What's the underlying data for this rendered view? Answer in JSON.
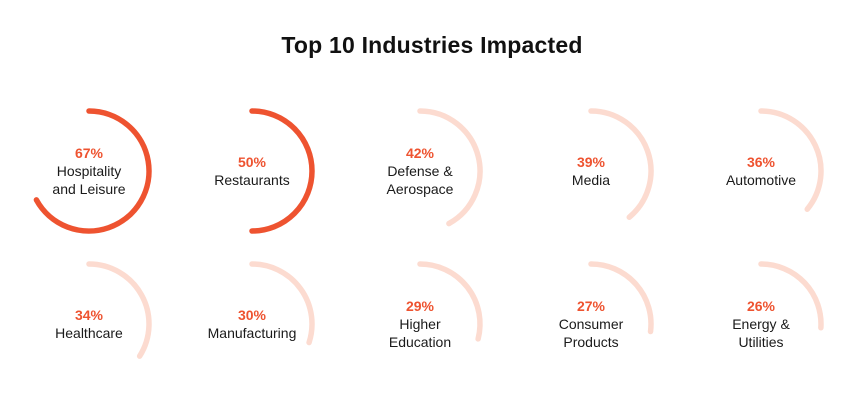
{
  "chart_data": {
    "type": "radial-progress",
    "title": "Top 10 Industries Impacted",
    "unit": "%",
    "items": [
      {
        "value": 67,
        "value_label": "67%",
        "label_lines": [
          "Hospitality",
          "and Leisure"
        ]
      },
      {
        "value": 50,
        "value_label": "50%",
        "label_lines": [
          "Restaurants"
        ]
      },
      {
        "value": 42,
        "value_label": "42%",
        "label_lines": [
          "Defense &",
          "Aerospace"
        ]
      },
      {
        "value": 39,
        "value_label": "39%",
        "label_lines": [
          "Media"
        ]
      },
      {
        "value": 36,
        "value_label": "36%",
        "label_lines": [
          "Automotive"
        ]
      },
      {
        "value": 34,
        "value_label": "34%",
        "label_lines": [
          "Healthcare"
        ]
      },
      {
        "value": 30,
        "value_label": "30%",
        "label_lines": [
          "Manufacturing"
        ]
      },
      {
        "value": 29,
        "value_label": "29%",
        "label_lines": [
          "Higher",
          "Education"
        ]
      },
      {
        "value": 27,
        "value_label": "27%",
        "label_lines": [
          "Consumer",
          "Products"
        ]
      },
      {
        "value": 26,
        "value_label": "26%",
        "label_lines": [
          "Energy &",
          "Utilities"
        ]
      }
    ]
  },
  "colors": {
    "highlight": "#EE5330",
    "muted": "#FCDBD0",
    "value_text": "#EE5330",
    "label_text": "#1a1a1a",
    "title_text": "#111111"
  },
  "highlight_count": 2
}
